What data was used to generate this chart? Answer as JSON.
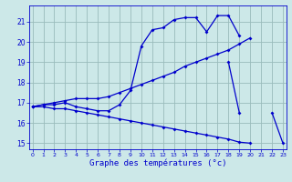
{
  "xlabel": "Graphe des températures (°c)",
  "x": [
    0,
    1,
    2,
    3,
    4,
    5,
    6,
    7,
    8,
    9,
    10,
    11,
    12,
    13,
    14,
    15,
    16,
    17,
    18,
    19,
    20,
    21,
    22,
    23
  ],
  "line1": [
    16.8,
    16.9,
    16.9,
    17.0,
    16.8,
    16.7,
    16.6,
    16.6,
    16.9,
    17.6,
    19.8,
    20.6,
    20.7,
    21.1,
    21.2,
    21.2,
    20.5,
    21.3,
    21.3,
    20.3,
    null,
    null,
    null,
    null
  ],
  "line2": [
    16.8,
    16.9,
    17.0,
    17.1,
    17.2,
    17.2,
    17.2,
    17.3,
    17.5,
    17.7,
    17.9,
    18.1,
    18.3,
    18.5,
    18.8,
    19.0,
    19.2,
    19.4,
    19.6,
    19.9,
    20.2,
    null,
    null,
    null
  ],
  "line3": [
    16.8,
    16.8,
    16.7,
    16.7,
    16.6,
    16.5,
    16.4,
    16.3,
    16.2,
    16.1,
    16.0,
    15.9,
    15.8,
    15.7,
    15.6,
    15.5,
    15.4,
    15.3,
    15.2,
    15.05,
    15.0,
    null,
    null,
    null
  ],
  "line4": [
    null,
    null,
    null,
    null,
    null,
    null,
    null,
    null,
    null,
    null,
    null,
    null,
    null,
    null,
    null,
    null,
    null,
    null,
    19.0,
    16.5,
    null,
    null,
    16.5,
    15.0
  ],
  "line_color": "#0000cc",
  "bg_color": "#cce8e8",
  "grid_color": "#99bbbb",
  "ylim": [
    14.7,
    21.8
  ],
  "xlim": [
    -0.3,
    23.3
  ],
  "yticks": [
    15,
    16,
    17,
    18,
    19,
    20,
    21
  ],
  "xticks": [
    0,
    1,
    2,
    3,
    4,
    5,
    6,
    7,
    8,
    9,
    10,
    11,
    12,
    13,
    14,
    15,
    16,
    17,
    18,
    19,
    20,
    21,
    22,
    23
  ]
}
